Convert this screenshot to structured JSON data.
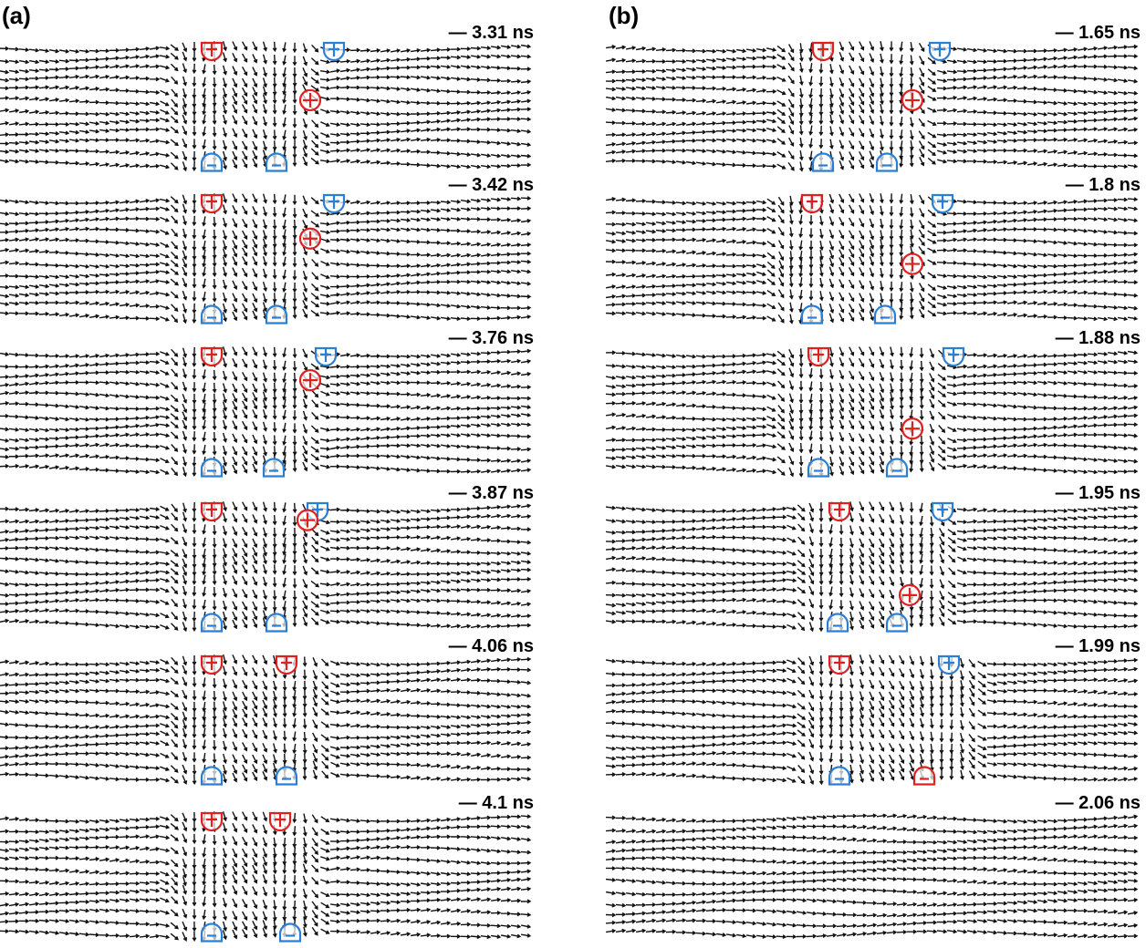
{
  "panels": [
    {
      "label": "(a)",
      "frames": [
        {
          "time": "— 3.31 ns"
        },
        {
          "time": "— 3.42 ns"
        },
        {
          "time": "— 3.76 ns"
        },
        {
          "time": "— 3.87 ns"
        },
        {
          "time": "— 4.06 ns"
        },
        {
          "time": "— 4.1 ns"
        }
      ]
    },
    {
      "label": "(b)",
      "frames": [
        {
          "time": "— 1.65 ns"
        },
        {
          "time": "— 1.8 ns"
        },
        {
          "time": "— 1.88 ns"
        },
        {
          "time": "— 1.95 ns"
        },
        {
          "time": "— 1.99 ns"
        },
        {
          "time": "— 2.06 ns"
        }
      ]
    }
  ]
}
